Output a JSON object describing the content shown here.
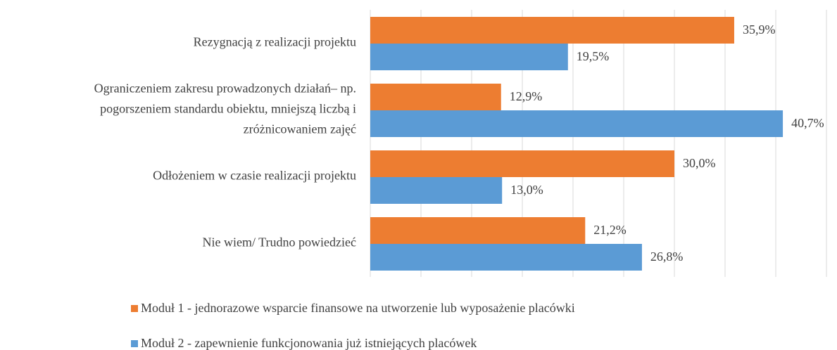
{
  "chart_data": {
    "type": "bar",
    "orientation": "horizontal",
    "categories": [
      "Rezygnacją z realizacji projektu",
      "Ograniczeniem zakresu prowadzonych działań– np.\npogorszeniem standardu obiektu, mniejszą liczbą i\nzróżnicowaniem zajęć",
      "Odłożeniem w czasie realizacji projektu",
      "Nie wiem/ Trudno powiedzieć"
    ],
    "series": [
      {
        "name": "Moduł 1 - jednorazowe wsparcie finansowe na utworzenie lub wyposażenie placówki",
        "color": "#ed7d31",
        "values": [
          35.9,
          12.9,
          30.0,
          21.2
        ],
        "value_labels": [
          "35,9%",
          "12,9%",
          "30,0%",
          "21,2%"
        ]
      },
      {
        "name": "Moduł 2 - zapewnienie funkcjonowania już istniejących placówek",
        "color": "#5b9bd5",
        "values": [
          19.5,
          40.7,
          13.0,
          26.8
        ],
        "value_labels": [
          "19,5%",
          "40,7%",
          "13,0%",
          "26,8%"
        ]
      }
    ],
    "xlim": [
      0,
      45
    ],
    "xticks": [
      0,
      5,
      10,
      15,
      20,
      25,
      30,
      35,
      40,
      45
    ],
    "grid": true
  }
}
